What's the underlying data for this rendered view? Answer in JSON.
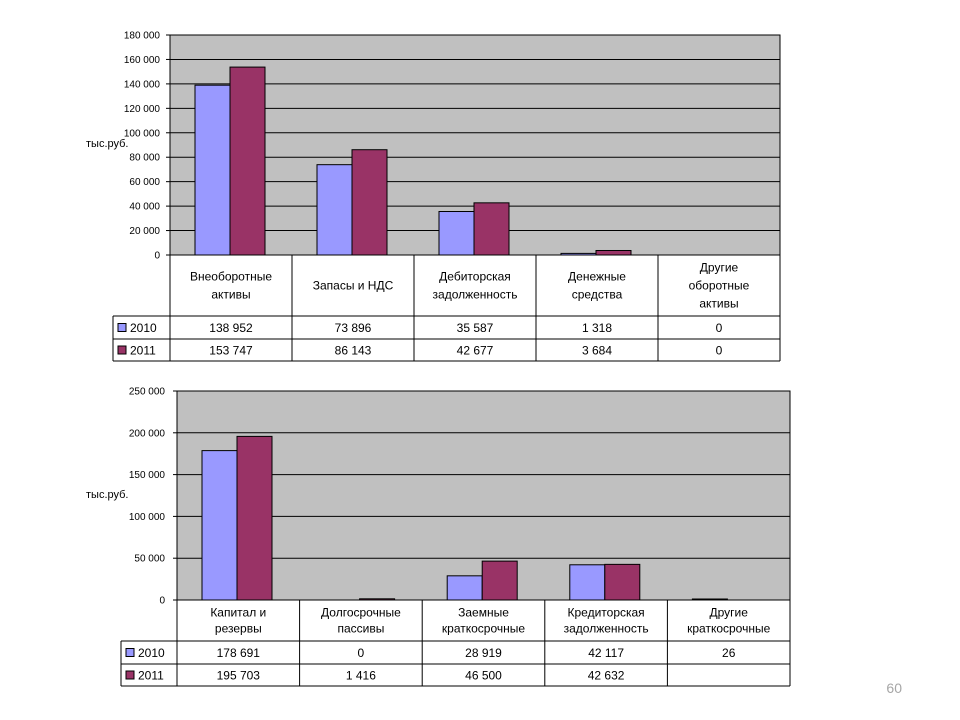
{
  "page": {
    "number": "60"
  },
  "colors": {
    "plot_bg": "#c0c0c0",
    "series_2010": "#9999ff",
    "series_2011": "#993366",
    "grid": "#000000"
  },
  "chart_data": [
    {
      "type": "bar",
      "ylabel": "тыс.руб.",
      "ylim": [
        0,
        180000
      ],
      "yticks": [
        "0",
        "20 000",
        "40 000",
        "60 000",
        "80 000",
        "100 000",
        "120 000",
        "140 000",
        "160 000",
        "180 000"
      ],
      "categories": [
        [
          "Внеоборотные",
          "активы"
        ],
        [
          "Запасы и НДС"
        ],
        [
          "Дебиторская",
          "задолженность"
        ],
        [
          "Денежные",
          "средства"
        ],
        [
          "Другие",
          "оборотные",
          "активы"
        ]
      ],
      "series": [
        {
          "name": "2010",
          "values": [
            138952,
            73896,
            35587,
            1318,
            0
          ],
          "labels": [
            "138 952",
            "73 896",
            "35 587",
            "1 318",
            "0"
          ]
        },
        {
          "name": "2011",
          "values": [
            153747,
            86143,
            42677,
            3684,
            0
          ],
          "labels": [
            "153 747",
            "86 143",
            "42 677",
            "3 684",
            "0"
          ]
        }
      ],
      "grid": true,
      "data_table": true
    },
    {
      "type": "bar",
      "ylabel": "тыс.руб.",
      "ylim": [
        0,
        250000
      ],
      "yticks": [
        "0",
        "50 000",
        "100 000",
        "150 000",
        "200 000",
        "250 000"
      ],
      "categories": [
        [
          "Капитал и",
          "резервы"
        ],
        [
          "Долгосрочные",
          "пассивы"
        ],
        [
          "Заемные",
          "краткосрочные"
        ],
        [
          "Кредиторская",
          "задолженность"
        ],
        [
          "Другие",
          "краткосрочные"
        ]
      ],
      "series": [
        {
          "name": "2010",
          "values": [
            178691,
            0,
            28919,
            42117,
            26
          ],
          "labels": [
            "178 691",
            "0",
            "28 919",
            "42 117",
            "26"
          ]
        },
        {
          "name": "2011",
          "values": [
            195703,
            1416,
            46500,
            42632,
            null
          ],
          "labels": [
            "195 703",
            "1 416",
            "46 500",
            "42 632",
            ""
          ]
        }
      ],
      "grid": true,
      "data_table": true
    }
  ]
}
